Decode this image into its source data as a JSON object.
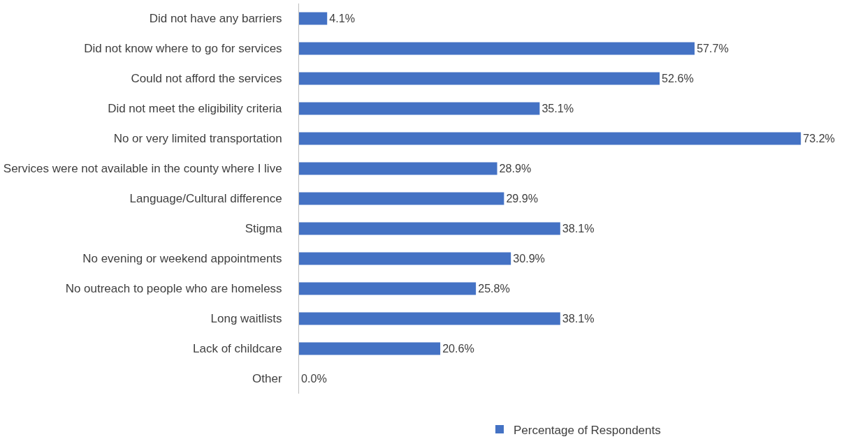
{
  "chart_data": {
    "type": "bar",
    "orientation": "horizontal",
    "categories": [
      "Did not have any barriers",
      "Did not know where to go for services",
      "Could not afford the services",
      "Did not meet the eligibility criteria",
      "No or very limited transportation",
      "Services were not available in the county where I live",
      "Language/Cultural difference",
      "Stigma",
      "No evening or weekend appointments",
      "No outreach to people who are homeless",
      "Long waitlists",
      "Lack of childcare",
      "Other"
    ],
    "series": [
      {
        "name": "Percentage of Respondents",
        "color": "#4472c4",
        "values": [
          4.1,
          57.7,
          52.6,
          35.1,
          73.2,
          28.9,
          29.9,
          38.1,
          30.9,
          25.8,
          38.1,
          20.6,
          0.0
        ],
        "value_labels": [
          "4.1%",
          "57.7%",
          "52.6%",
          "35.1%",
          "73.2%",
          "28.9%",
          "29.9%",
          "38.1%",
          "30.9%",
          "25.8%",
          "38.1%",
          "20.6%",
          "0.0%"
        ]
      }
    ],
    "legend": "bottom",
    "tick_labels": "y"
  }
}
